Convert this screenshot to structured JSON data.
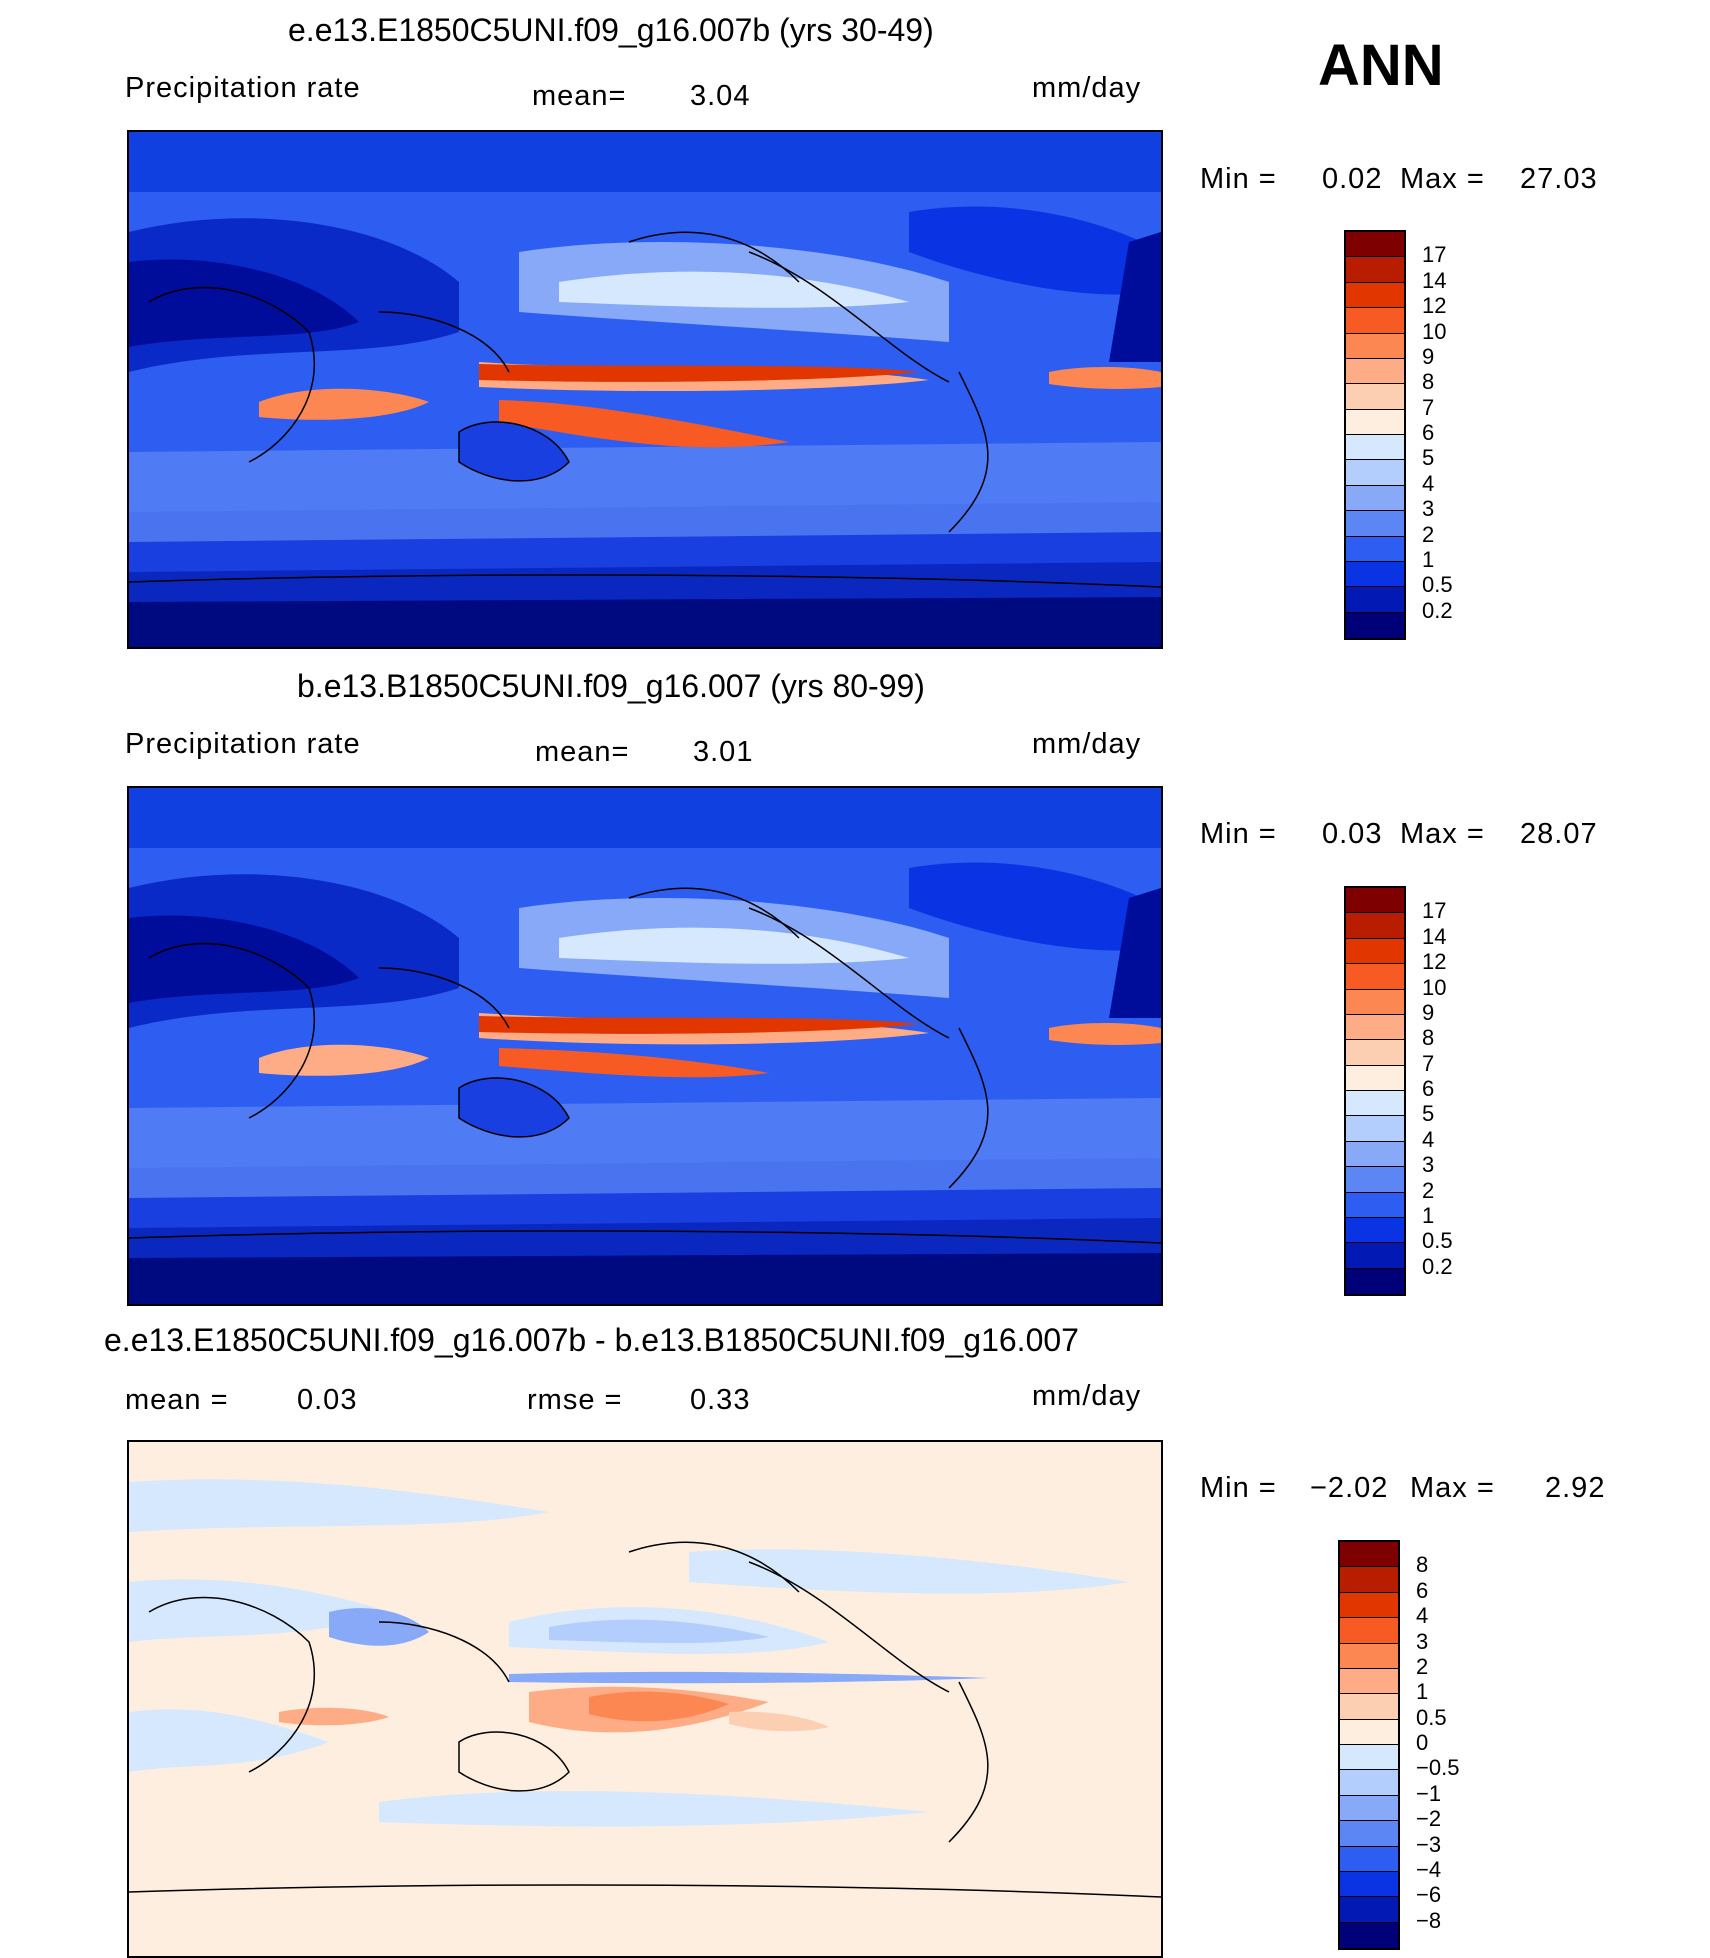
{
  "header": {
    "season": "ANN"
  },
  "panels": [
    {
      "title": "e.e13.E1850C5UNI.f09_g16.007b (yrs 30-49)",
      "left_label": "Precipitation  rate",
      "stat_label": "mean=",
      "stat_value": "3.04",
      "units": "mm/day",
      "min_label": "Min  =",
      "min_value": "0.02",
      "max_label": "Max  =",
      "max_value": "27.03",
      "colorbar": {
        "levels": [
          "17",
          "14",
          "12",
          "10",
          "9",
          "8",
          "7",
          "6",
          "5",
          "4",
          "3",
          "2",
          "1",
          "0.5",
          "0.2"
        ],
        "colors": [
          "#7f0000",
          "#b81d00",
          "#e13600",
          "#f85a24",
          "#fd8753",
          "#fdac85",
          "#fdcfb2",
          "#fdeee0",
          "#d6e8fd",
          "#b3cdfc",
          "#87a9f8",
          "#5b86f4",
          "#2d5ef1",
          "#0a34e3",
          "#0219b4",
          "#000078"
        ]
      }
    },
    {
      "title": "b.e13.B1850C5UNI.f09_g16.007 (yrs 80-99)",
      "left_label": "Precipitation  rate",
      "stat_label": "mean=",
      "stat_value": "3.01",
      "units": "mm/day",
      "min_label": "Min  =",
      "min_value": "0.03",
      "max_label": "Max  =",
      "max_value": "28.07",
      "colorbar": {
        "levels": [
          "17",
          "14",
          "12",
          "10",
          "9",
          "8",
          "7",
          "6",
          "5",
          "4",
          "3",
          "2",
          "1",
          "0.5",
          "0.2"
        ],
        "colors": [
          "#7f0000",
          "#b81d00",
          "#e13600",
          "#f85a24",
          "#fd8753",
          "#fdac85",
          "#fdcfb2",
          "#fdeee0",
          "#d6e8fd",
          "#b3cdfc",
          "#87a9f8",
          "#5b86f4",
          "#2d5ef1",
          "#0a34e3",
          "#0219b4",
          "#000078"
        ]
      }
    },
    {
      "title": "e.e13.E1850C5UNI.f09_g16.007b - b.e13.B1850C5UNI.f09_g16.007",
      "left_label": "mean  =",
      "left_value": "0.03",
      "stat_label": "rmse  =",
      "stat_value": "0.33",
      "units": "mm/day",
      "min_label": "Min  =",
      "min_value": "−2.02",
      "max_label": "Max  =",
      "max_value": "2.92",
      "colorbar": {
        "levels": [
          "8",
          "6",
          "4",
          "3",
          "2",
          "1",
          "0.5",
          "0",
          "−0.5",
          "−1",
          "−2",
          "−3",
          "−4",
          "−6",
          "−8"
        ],
        "colors": [
          "#7f0000",
          "#b81d00",
          "#e13600",
          "#f85a24",
          "#fd8753",
          "#fdac85",
          "#fdcfb2",
          "#fdeee0",
          "#d6e8fd",
          "#b3cdfc",
          "#87a9f8",
          "#5b86f4",
          "#2d5ef1",
          "#0a34e3",
          "#0219b4",
          "#000078"
        ]
      }
    }
  ]
}
